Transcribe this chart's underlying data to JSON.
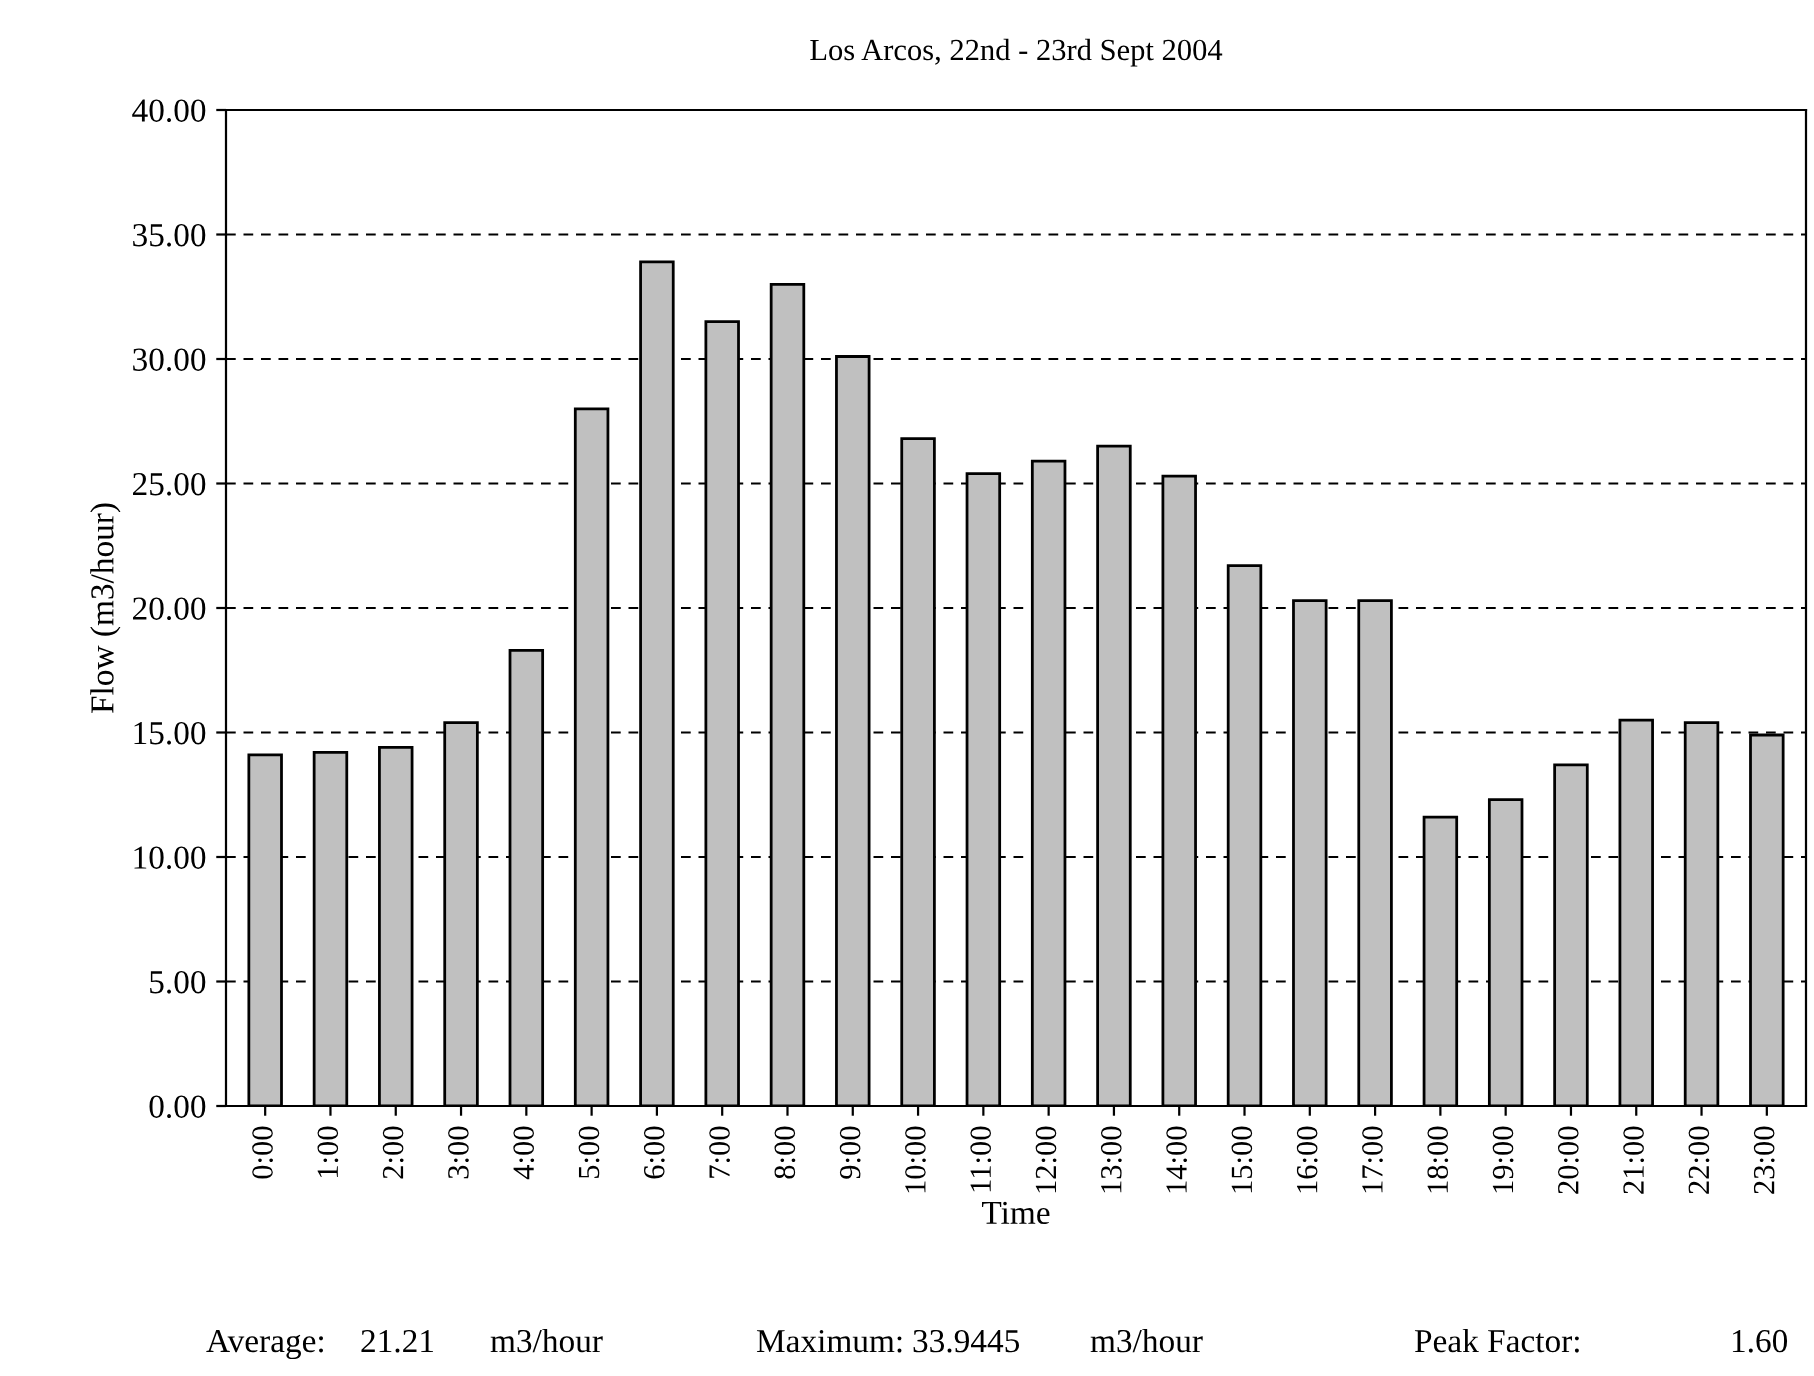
{
  "chart_data": {
    "type": "bar",
    "title": "Los Arcos, 22nd - 23rd Sept 2004",
    "xlabel": "Time",
    "ylabel": "Flow (m3/hour)",
    "categories": [
      "0:00",
      "1:00",
      "2:00",
      "3:00",
      "4:00",
      "5:00",
      "6:00",
      "7:00",
      "8:00",
      "9:00",
      "10:00",
      "11:00",
      "12:00",
      "13:00",
      "14:00",
      "15:00",
      "16:00",
      "17:00",
      "18:00",
      "19:00",
      "20:00",
      "21:00",
      "22:00",
      "23:00"
    ],
    "values": [
      14.1,
      14.2,
      14.4,
      15.4,
      18.3,
      28.0,
      33.9,
      31.5,
      33.0,
      30.1,
      26.8,
      25.4,
      25.9,
      26.5,
      25.3,
      21.7,
      20.3,
      20.3,
      11.6,
      12.3,
      13.7,
      15.5,
      15.4,
      14.9
    ],
    "color": "#c0c0c0",
    "ylim": [
      0,
      40
    ],
    "yticks": [
      {
        "value": 0,
        "label": "0.00"
      },
      {
        "value": 5,
        "label": "5.00"
      },
      {
        "value": 10,
        "label": "10.00"
      },
      {
        "value": 15,
        "label": "15.00"
      },
      {
        "value": 20,
        "label": "20.00"
      },
      {
        "value": 25,
        "label": "25.00"
      },
      {
        "value": 30,
        "label": "30.00"
      },
      {
        "value": 35,
        "label": "35.00"
      },
      {
        "value": 40,
        "label": "40.00"
      }
    ],
    "grid": "y",
    "line_style": "dashed",
    "annotations": [
      "Average:",
      "21.21",
      "m3/hour",
      "Maximum:",
      "33.9445",
      "m3/hour",
      "Peak Factor:",
      "1.60"
    ]
  }
}
